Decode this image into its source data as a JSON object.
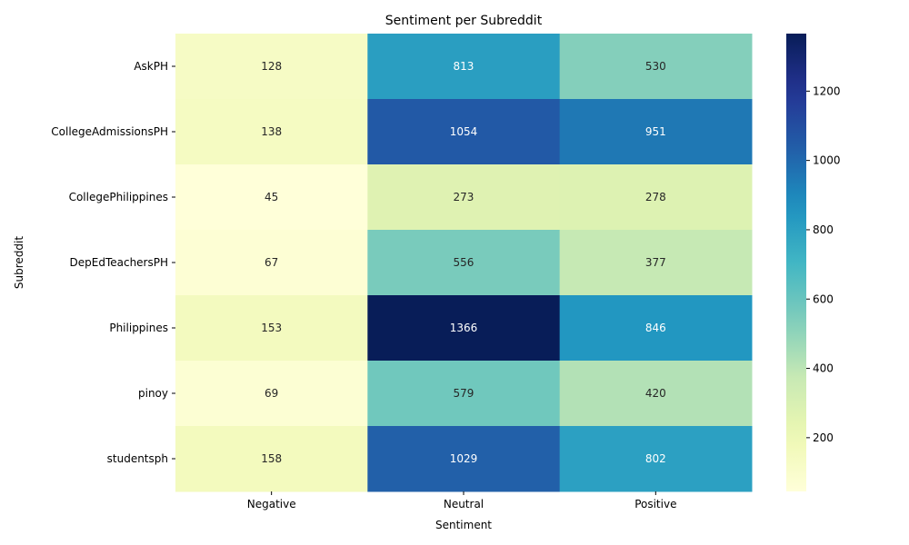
{
  "chart_data": {
    "type": "heatmap",
    "title": "Sentiment per Subreddit",
    "xlabel": "Sentiment",
    "ylabel": "Subreddit",
    "columns": [
      "Negative",
      "Neutral",
      "Positive"
    ],
    "rows": [
      "AskPH",
      "CollegeAdmissionsPH",
      "CollegePhilippines",
      "DepEdTeachersPH",
      "Philippines",
      "pinoy",
      "studentsph"
    ],
    "values": [
      [
        128,
        813,
        530
      ],
      [
        138,
        1054,
        951
      ],
      [
        45,
        273,
        278
      ],
      [
        67,
        556,
        377
      ],
      [
        153,
        1366,
        846
      ],
      [
        69,
        579,
        420
      ],
      [
        158,
        1029,
        802
      ]
    ],
    "colorbar": {
      "min": 45,
      "max": 1366,
      "ticks": [
        200,
        400,
        600,
        800,
        1000,
        1200
      ],
      "colormap": "YlGnBu"
    }
  }
}
